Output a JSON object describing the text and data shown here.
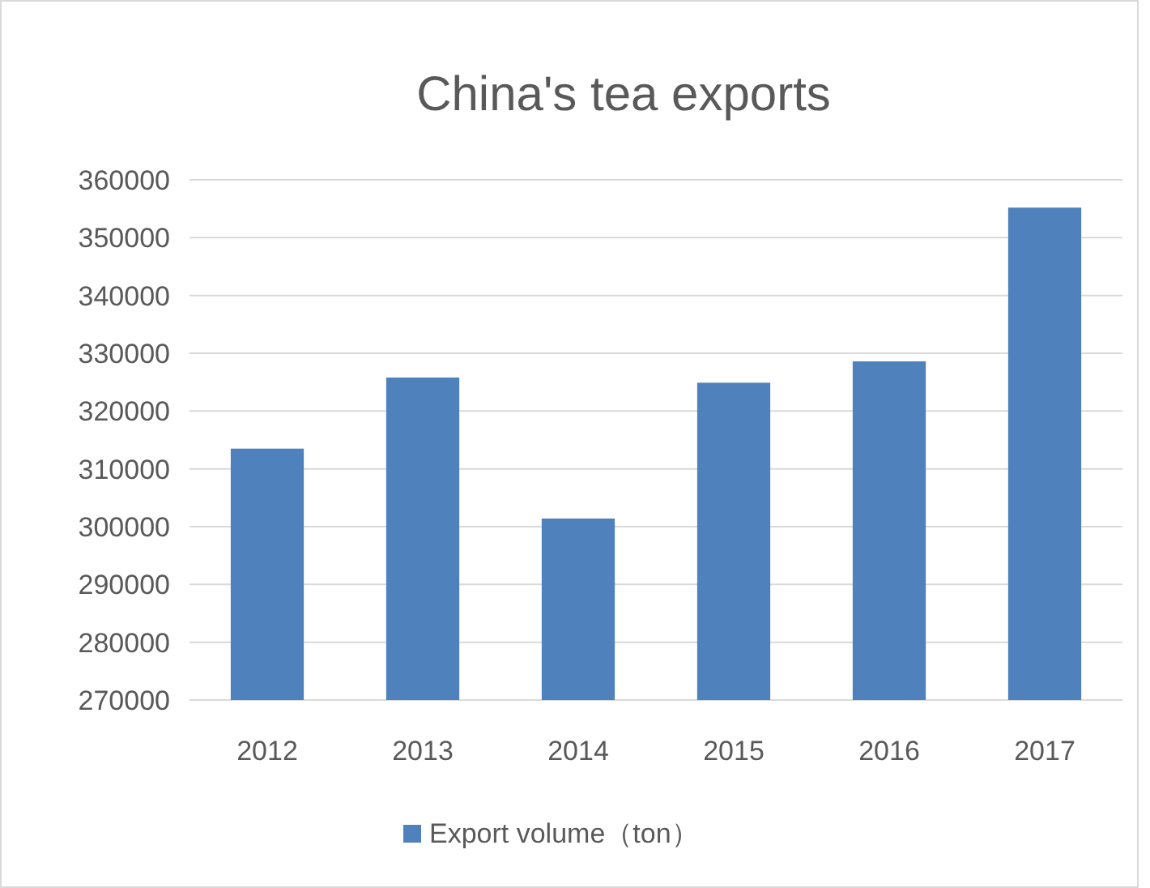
{
  "chart_data": {
    "type": "bar",
    "title": "China's tea exports",
    "categories": [
      "2012",
      "2013",
      "2014",
      "2015",
      "2016",
      "2017"
    ],
    "series": [
      {
        "name": "Export volume（ton）",
        "color": "#4f81bd",
        "values": [
          313500,
          325800,
          301400,
          324900,
          328600,
          355200
        ]
      }
    ],
    "ylim": [
      270000,
      360000
    ],
    "yticks": [
      270000,
      280000,
      290000,
      300000,
      310000,
      320000,
      330000,
      340000,
      350000,
      360000
    ],
    "grid": "y",
    "legend": "bottom"
  }
}
